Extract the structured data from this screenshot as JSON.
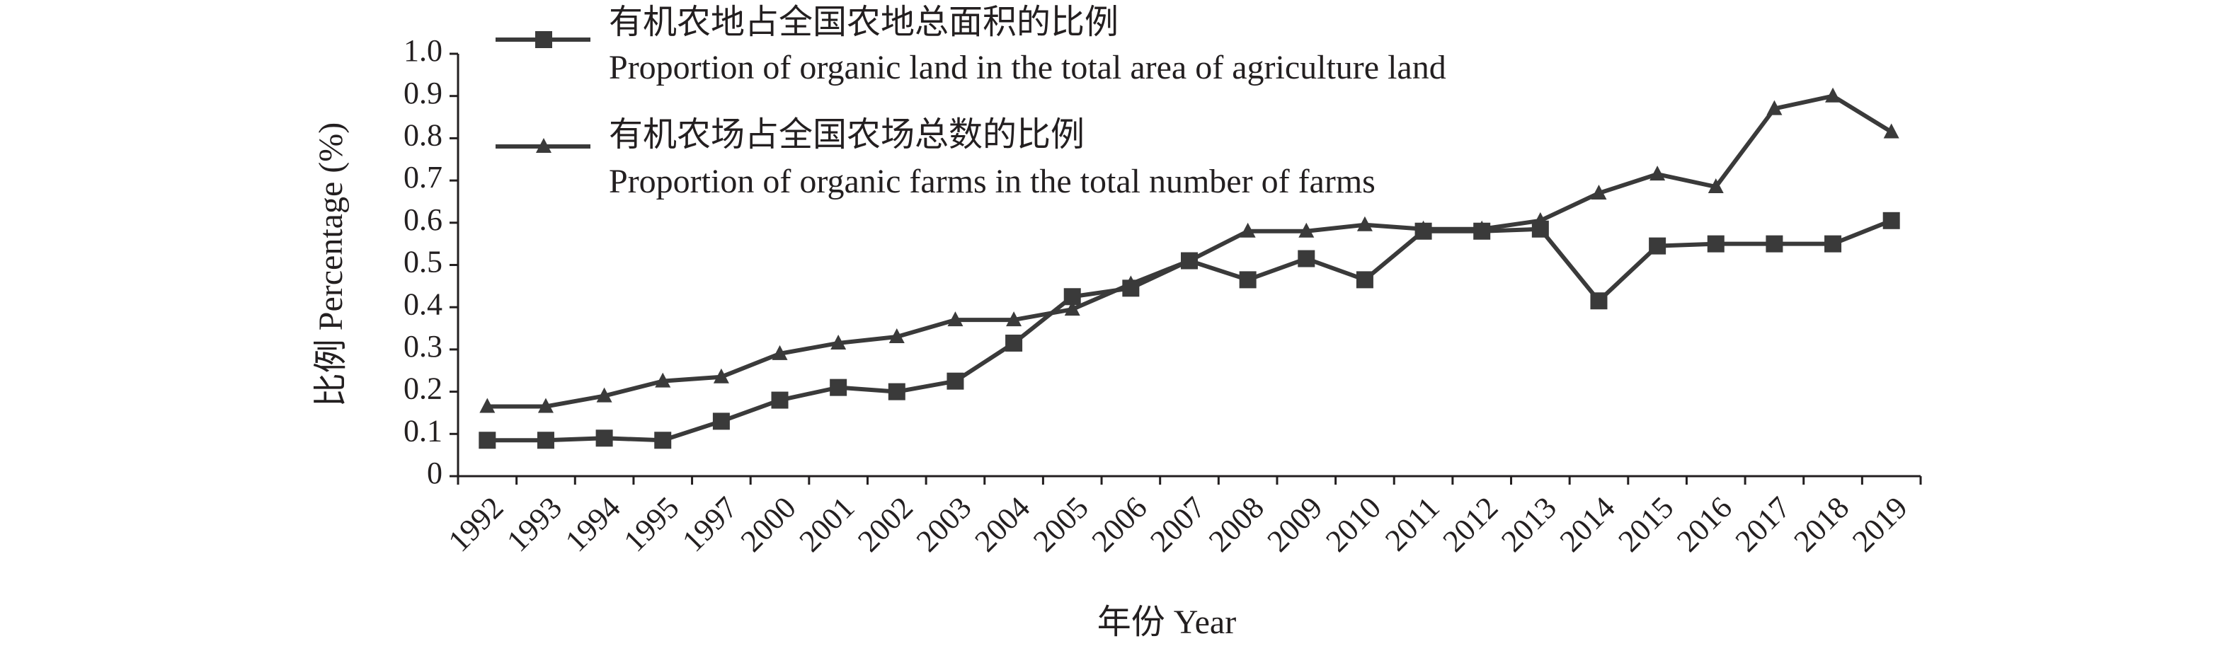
{
  "chart_data": {
    "type": "line",
    "x_label": "年份 Year",
    "y_label": "比例 Percentage (%)",
    "categories": [
      "1992",
      "1993",
      "1994",
      "1995",
      "1997",
      "2000",
      "2001",
      "2002",
      "2003",
      "2004",
      "2005",
      "2006",
      "2007",
      "2008",
      "2009",
      "2010",
      "2011",
      "2012",
      "2013",
      "2014",
      "2015",
      "2016",
      "2017",
      "2018",
      "2019"
    ],
    "series": [
      {
        "name": "有机农地占全国农地总面积的比例",
        "name_en": "Proportion of organic land in the total area of agriculture land",
        "color": "#3a3a3a",
        "marker": "square",
        "values": [
          0.085,
          0.085,
          0.09,
          0.085,
          0.13,
          0.18,
          0.21,
          0.2,
          0.225,
          0.315,
          0.425,
          0.445,
          0.51,
          0.465,
          0.515,
          0.465,
          0.58,
          0.58,
          0.585,
          0.415,
          0.545,
          0.55,
          0.55,
          0.55,
          0.605
        ]
      },
      {
        "name": "有机农场占全国农场总数的比例",
        "name_en": "Proportion of organic farms in the total number of farms",
        "color": "#3a3a3a",
        "marker": "triangle",
        "values": [
          0.165,
          0.165,
          0.19,
          0.225,
          0.235,
          0.29,
          0.315,
          0.33,
          0.37,
          0.37,
          0.395,
          0.455,
          0.51,
          0.58,
          0.58,
          0.595,
          0.585,
          0.585,
          0.605,
          0.67,
          0.715,
          0.685,
          0.87,
          0.9,
          0.815
        ]
      }
    ],
    "ylim": [
      0,
      1
    ],
    "yticks": [
      0,
      0.1,
      0.2,
      0.3,
      0.4,
      0.5,
      0.6,
      0.7,
      0.8,
      0.9,
      {
        "value": 1,
        "label": "1.0"
      }
    ],
    "grid": false,
    "legend": "top-left"
  }
}
